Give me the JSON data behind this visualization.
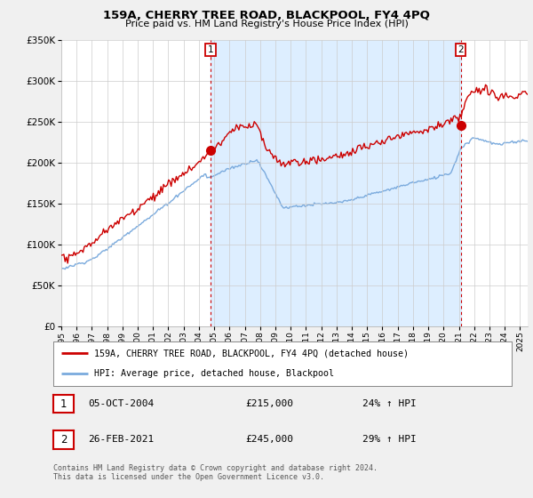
{
  "title": "159A, CHERRY TREE ROAD, BLACKPOOL, FY4 4PQ",
  "subtitle": "Price paid vs. HM Land Registry's House Price Index (HPI)",
  "legend_label_red": "159A, CHERRY TREE ROAD, BLACKPOOL, FY4 4PQ (detached house)",
  "legend_label_blue": "HPI: Average price, detached house, Blackpool",
  "sale1_date": "05-OCT-2004",
  "sale1_price": "£215,000",
  "sale1_hpi": "24% ↑ HPI",
  "sale1_year": 2004.76,
  "sale1_value": 215000,
  "sale2_date": "26-FEB-2021",
  "sale2_price": "£245,000",
  "sale2_hpi": "29% ↑ HPI",
  "sale2_year": 2021.12,
  "sale2_value": 245000,
  "footnote1": "Contains HM Land Registry data © Crown copyright and database right 2024.",
  "footnote2": "This data is licensed under the Open Government Licence v3.0.",
  "hpi_color": "#7aaadd",
  "sale_color": "#cc0000",
  "shade_color": "#ddeeff",
  "background_color": "#f0f0f0",
  "plot_background": "#ffffff",
  "ylim": [
    0,
    350000
  ],
  "xlim_start": 1995.0,
  "xlim_end": 2025.5
}
